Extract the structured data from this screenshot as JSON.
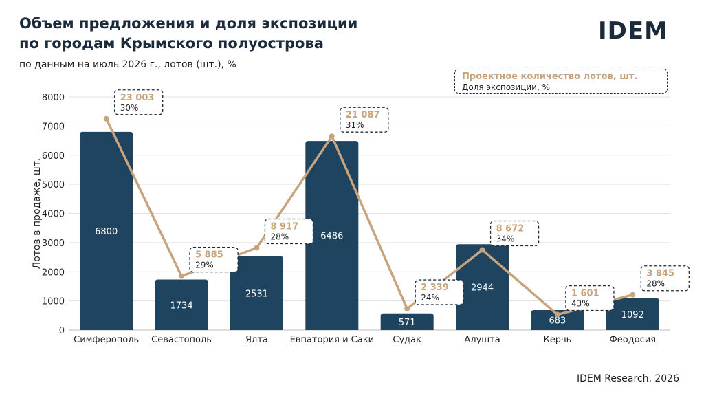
{
  "header": {
    "title_line1": "Объем предложения и доля экспозиции",
    "title_line2": "по городам Крымского полуострова",
    "subtitle": "по данным на июль 2026 г., лотов (шт.), %"
  },
  "logo": {
    "text": "IDEM"
  },
  "source": "IDEM Research, 2026",
  "legend": {
    "line1": "Проектное количество лотов, шт.",
    "line2": "Доля экспозиции, %"
  },
  "colors": {
    "bar": "#1f4460",
    "line": "#c8a47c",
    "title": "#1b2b3c",
    "grid": "#e2e2e2"
  },
  "chart_data": {
    "type": "bar",
    "categories": [
      "Симферополь",
      "Севастополь",
      "Ялта",
      "Евпатория и Саки",
      "Судак",
      "Алушта",
      "Керчь",
      "Феодосия"
    ],
    "ylabel": "Лотов в продаже, шт.",
    "ylim": [
      0,
      8000
    ],
    "yticks": [
      "0",
      "1000",
      "2000",
      "3000",
      "4000",
      "5000",
      "6000",
      "7000",
      "8000"
    ],
    "grid": true,
    "series": [
      {
        "type": "bar",
        "values": [
          6800,
          1734,
          2531,
          6486,
          571,
          2944,
          683,
          1092
        ],
        "labels": [
          "6800",
          "1734",
          "2531",
          "6486",
          "571",
          "2944",
          "683",
          "1092"
        ]
      },
      {
        "type": "line",
        "values": [
          7250,
          1850,
          2820,
          6650,
          730,
          2750,
          530,
          1210
        ]
      }
    ],
    "annotations": [
      {
        "projected": "23 003",
        "share": "30%"
      },
      {
        "projected": "5 885",
        "share": "29%"
      },
      {
        "projected": "8 917",
        "share": "28%"
      },
      {
        "projected": "21 087",
        "share": "31%"
      },
      {
        "projected": "2 339",
        "share": "24%"
      },
      {
        "projected": "8 672",
        "share": "34%"
      },
      {
        "projected": "1 601",
        "share": "43%"
      },
      {
        "projected": "3 845",
        "share": "28%"
      }
    ]
  }
}
